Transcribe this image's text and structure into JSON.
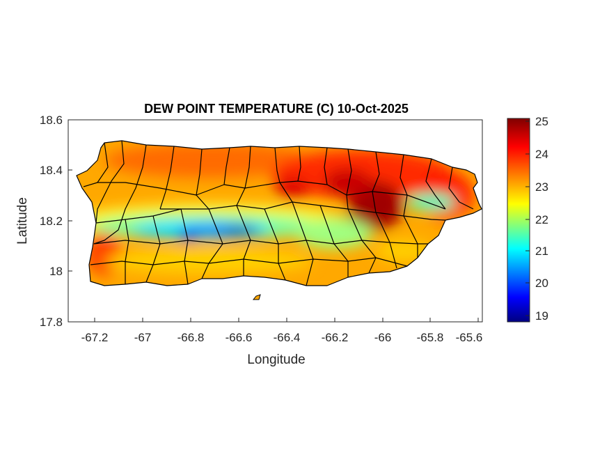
{
  "title": "DEW POINT TEMPERATURE (C) 10-Oct-2025",
  "xlabel": "Longitude",
  "ylabel": "Latitude",
  "map": {
    "region": "Puerto Rico",
    "boundaries": "municipality outlines",
    "colormap": "jet",
    "xlim": [
      -67.3,
      -65.58
    ],
    "ylim": [
      17.8,
      18.6
    ],
    "x_ticks": [
      "-67.2",
      "-67",
      "-66.8",
      "-66.6",
      "-66.4",
      "-66.2",
      "-66",
      "-65.8",
      "-65.6"
    ],
    "y_ticks": [
      "18.6",
      "18.4",
      "18.2",
      "18",
      "17.8"
    ]
  },
  "colorbar": {
    "range": [
      18.8,
      25
    ],
    "ticks": [
      "25",
      "24",
      "23",
      "22",
      "21",
      "20",
      "19"
    ],
    "colors": [
      "#000080",
      "#0000ff",
      "#00ffff",
      "#ffff00",
      "#ff0000",
      "#800000"
    ]
  }
}
